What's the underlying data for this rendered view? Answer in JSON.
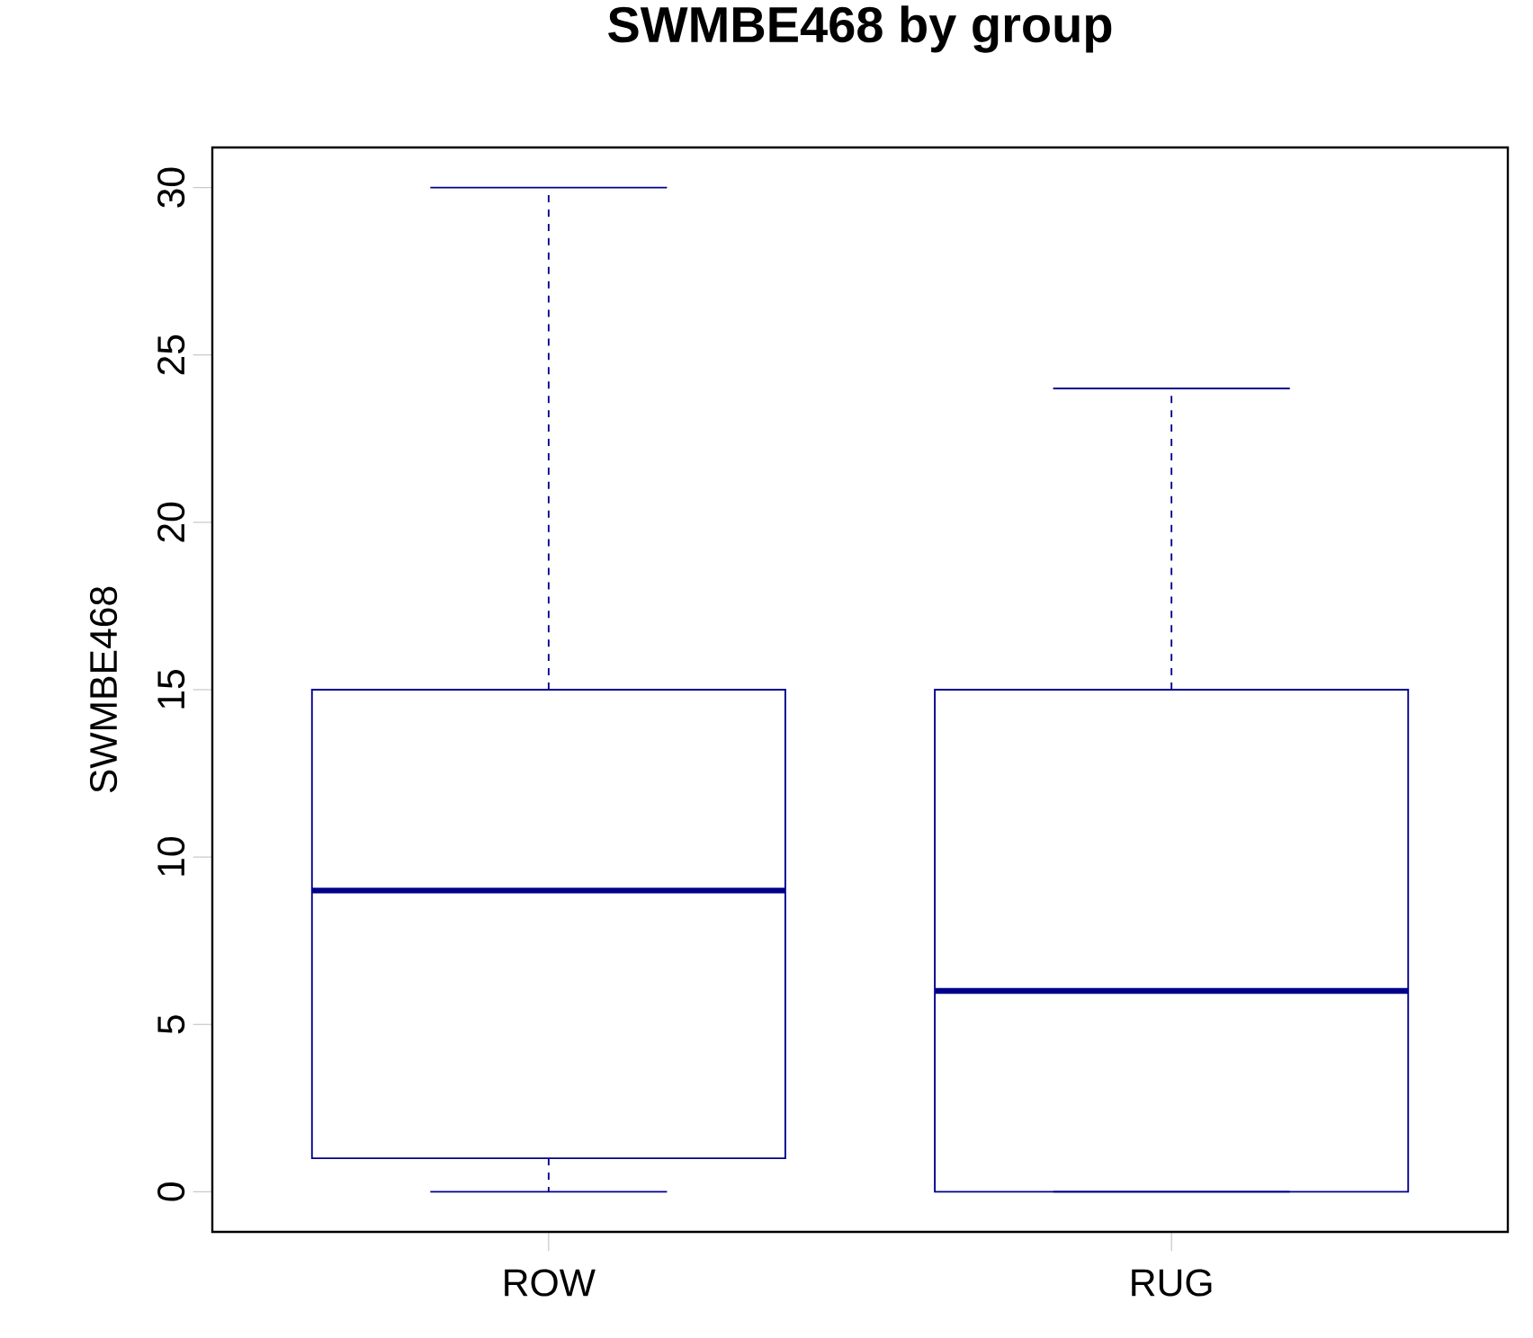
{
  "chart_data": {
    "type": "box",
    "title": "SWMBE468 by group",
    "ylabel": "SWMBE468",
    "categories": [
      "ROW",
      "RUG"
    ],
    "boxes": [
      {
        "low": 0,
        "q1": 1,
        "median": 9,
        "q3": 15,
        "high": 30
      },
      {
        "low": 0,
        "q1": 0,
        "median": 6,
        "q3": 15,
        "high": 24
      }
    ],
    "color": "#00008b",
    "ylim": [
      -1.2,
      31.2
    ],
    "yticks": [
      0,
      5,
      10,
      15,
      20,
      25,
      30
    ],
    "grid": false
  }
}
